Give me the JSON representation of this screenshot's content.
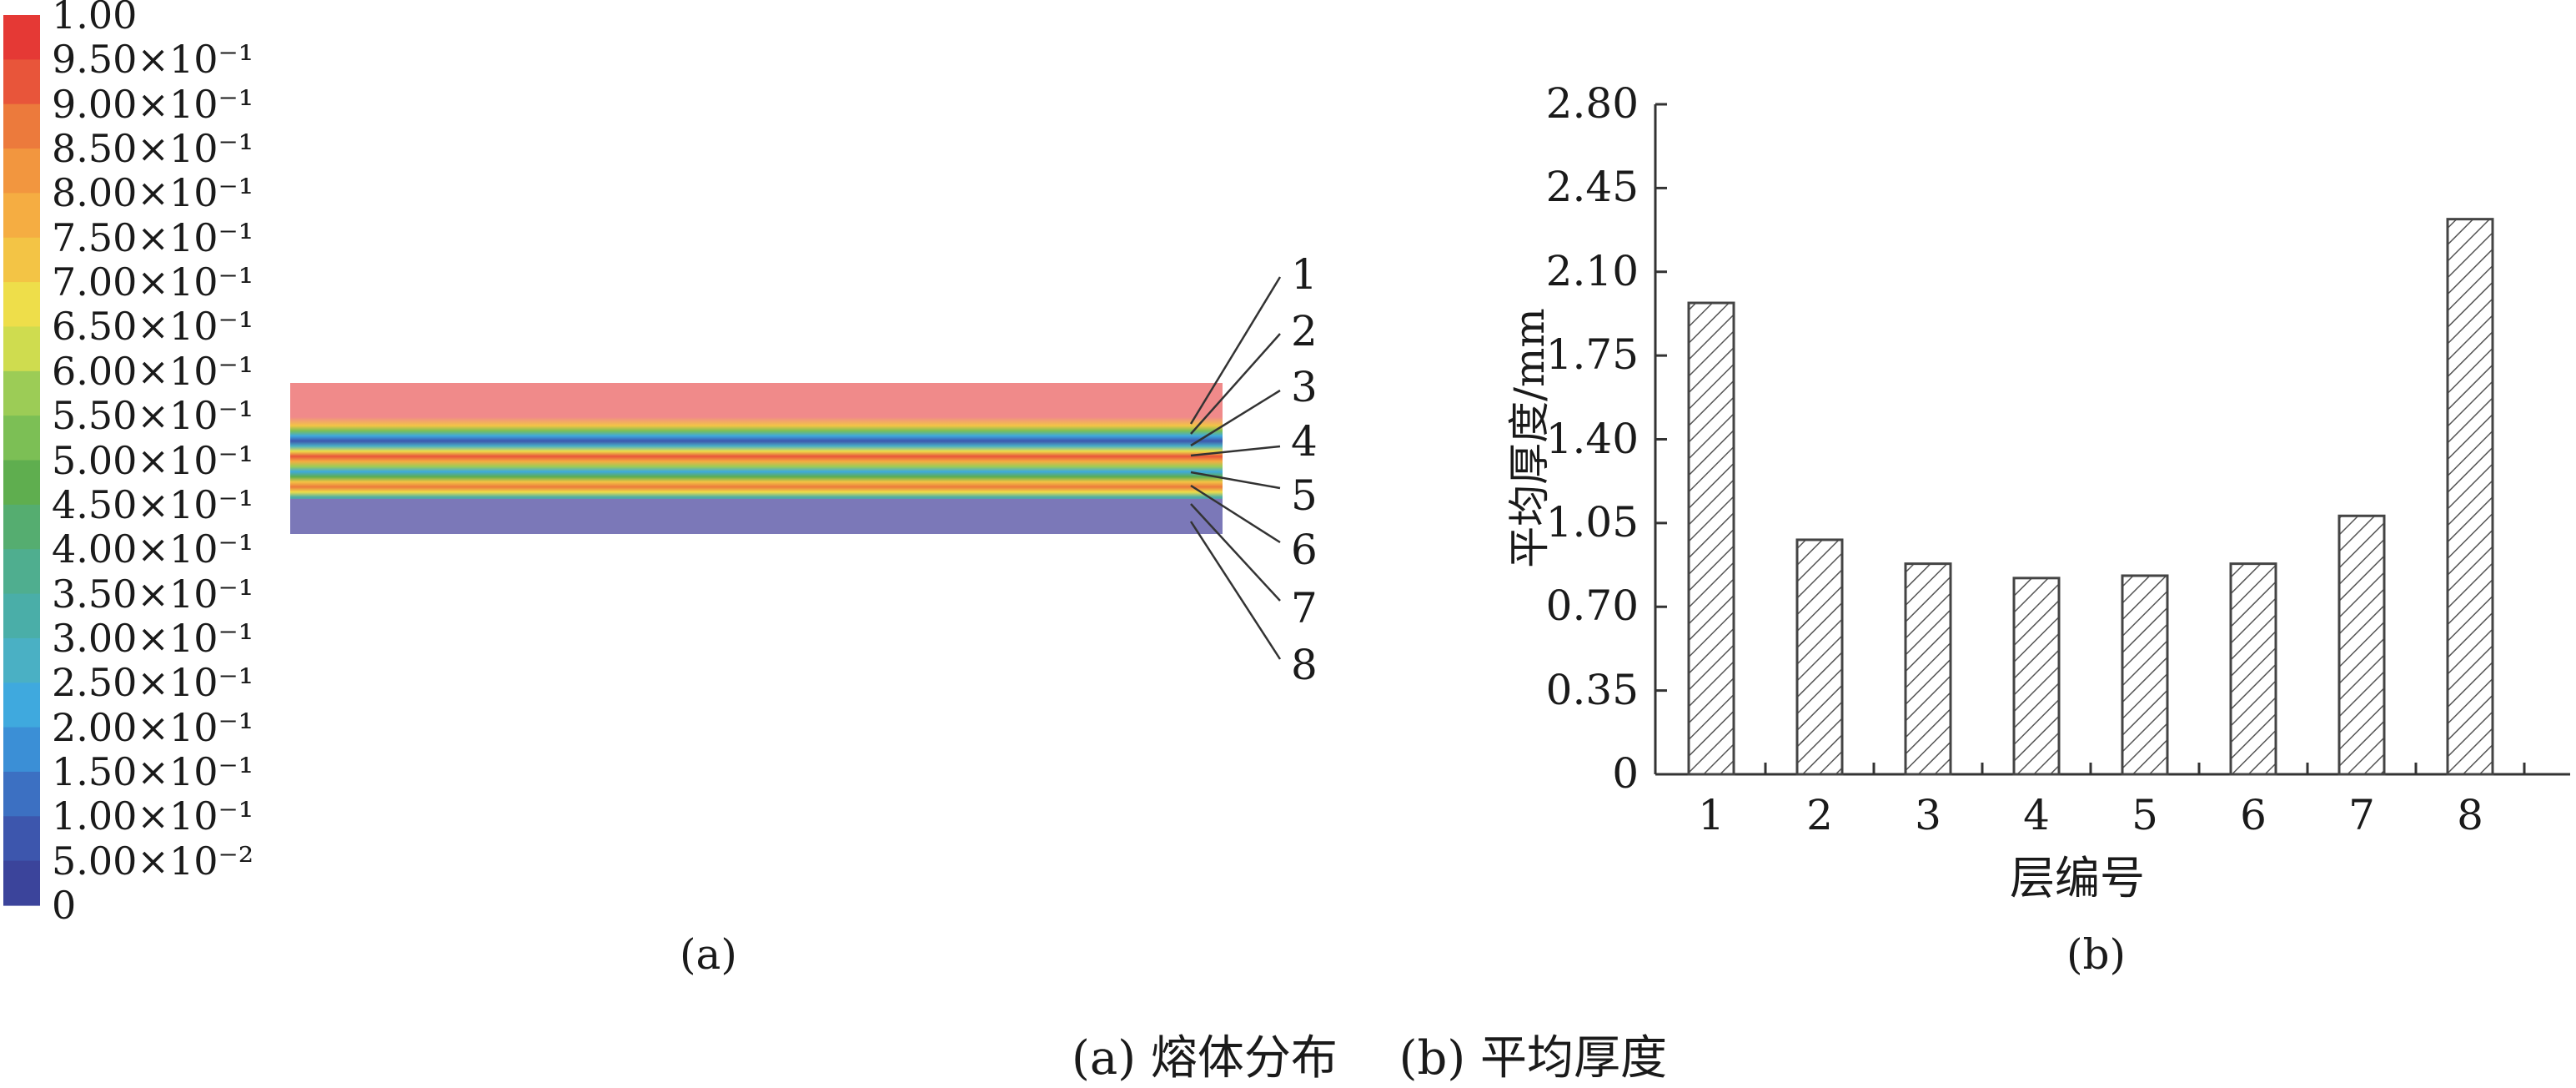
{
  "colorbar": {
    "labels": [
      "1.00",
      "9.50×10⁻¹",
      "9.00×10⁻¹",
      "8.50×10⁻¹",
      "8.00×10⁻¹",
      "7.50×10⁻¹",
      "7.00×10⁻¹",
      "6.50×10⁻¹",
      "6.00×10⁻¹",
      "5.50×10⁻¹",
      "5.00×10⁻¹",
      "4.50×10⁻¹",
      "4.00×10⁻¹",
      "3.50×10⁻¹",
      "3.00×10⁻¹",
      "2.50×10⁻¹",
      "2.00×10⁻¹",
      "1.50×10⁻¹",
      "1.00×10⁻¹",
      "5.00×10⁻²",
      "0"
    ],
    "colors": [
      "#e53935",
      "#e8553a",
      "#ec7a3c",
      "#f2963f",
      "#f5ad42",
      "#f3c445",
      "#eede4a",
      "#cfdc4f",
      "#9ccc56",
      "#7cbf55",
      "#5fae4f",
      "#55ad70",
      "#4fae8f",
      "#4aaea8",
      "#4ab0c4",
      "#3fa9de",
      "#3b8fd6",
      "#3c70c2",
      "#3d56ad",
      "#3b449b"
    ]
  },
  "field": {
    "layer_labels": [
      "1",
      "2",
      "3",
      "4",
      "5",
      "6",
      "7",
      "8"
    ],
    "top_color": "#f08a8a",
    "bottom_color": "#7b78b8"
  },
  "panel_labels": {
    "a": "(a)",
    "b": "(b)"
  },
  "caption": "(a) 熔体分布 　(b) 平均厚度",
  "chart_data": {
    "type": "bar",
    "categories": [
      "1",
      "2",
      "3",
      "4",
      "5",
      "6",
      "7",
      "8"
    ],
    "values": [
      1.97,
      0.98,
      0.88,
      0.82,
      0.83,
      0.88,
      1.08,
      2.32
    ],
    "ylabel": "平均厚度/mm",
    "xlabel": "层编号",
    "ylim": [
      0,
      2.8
    ],
    "yticks": [
      "0",
      "0.35",
      "0.70",
      "1.05",
      "1.40",
      "1.75",
      "2.10",
      "2.45",
      "2.80"
    ],
    "bar_fill": "hatched"
  }
}
